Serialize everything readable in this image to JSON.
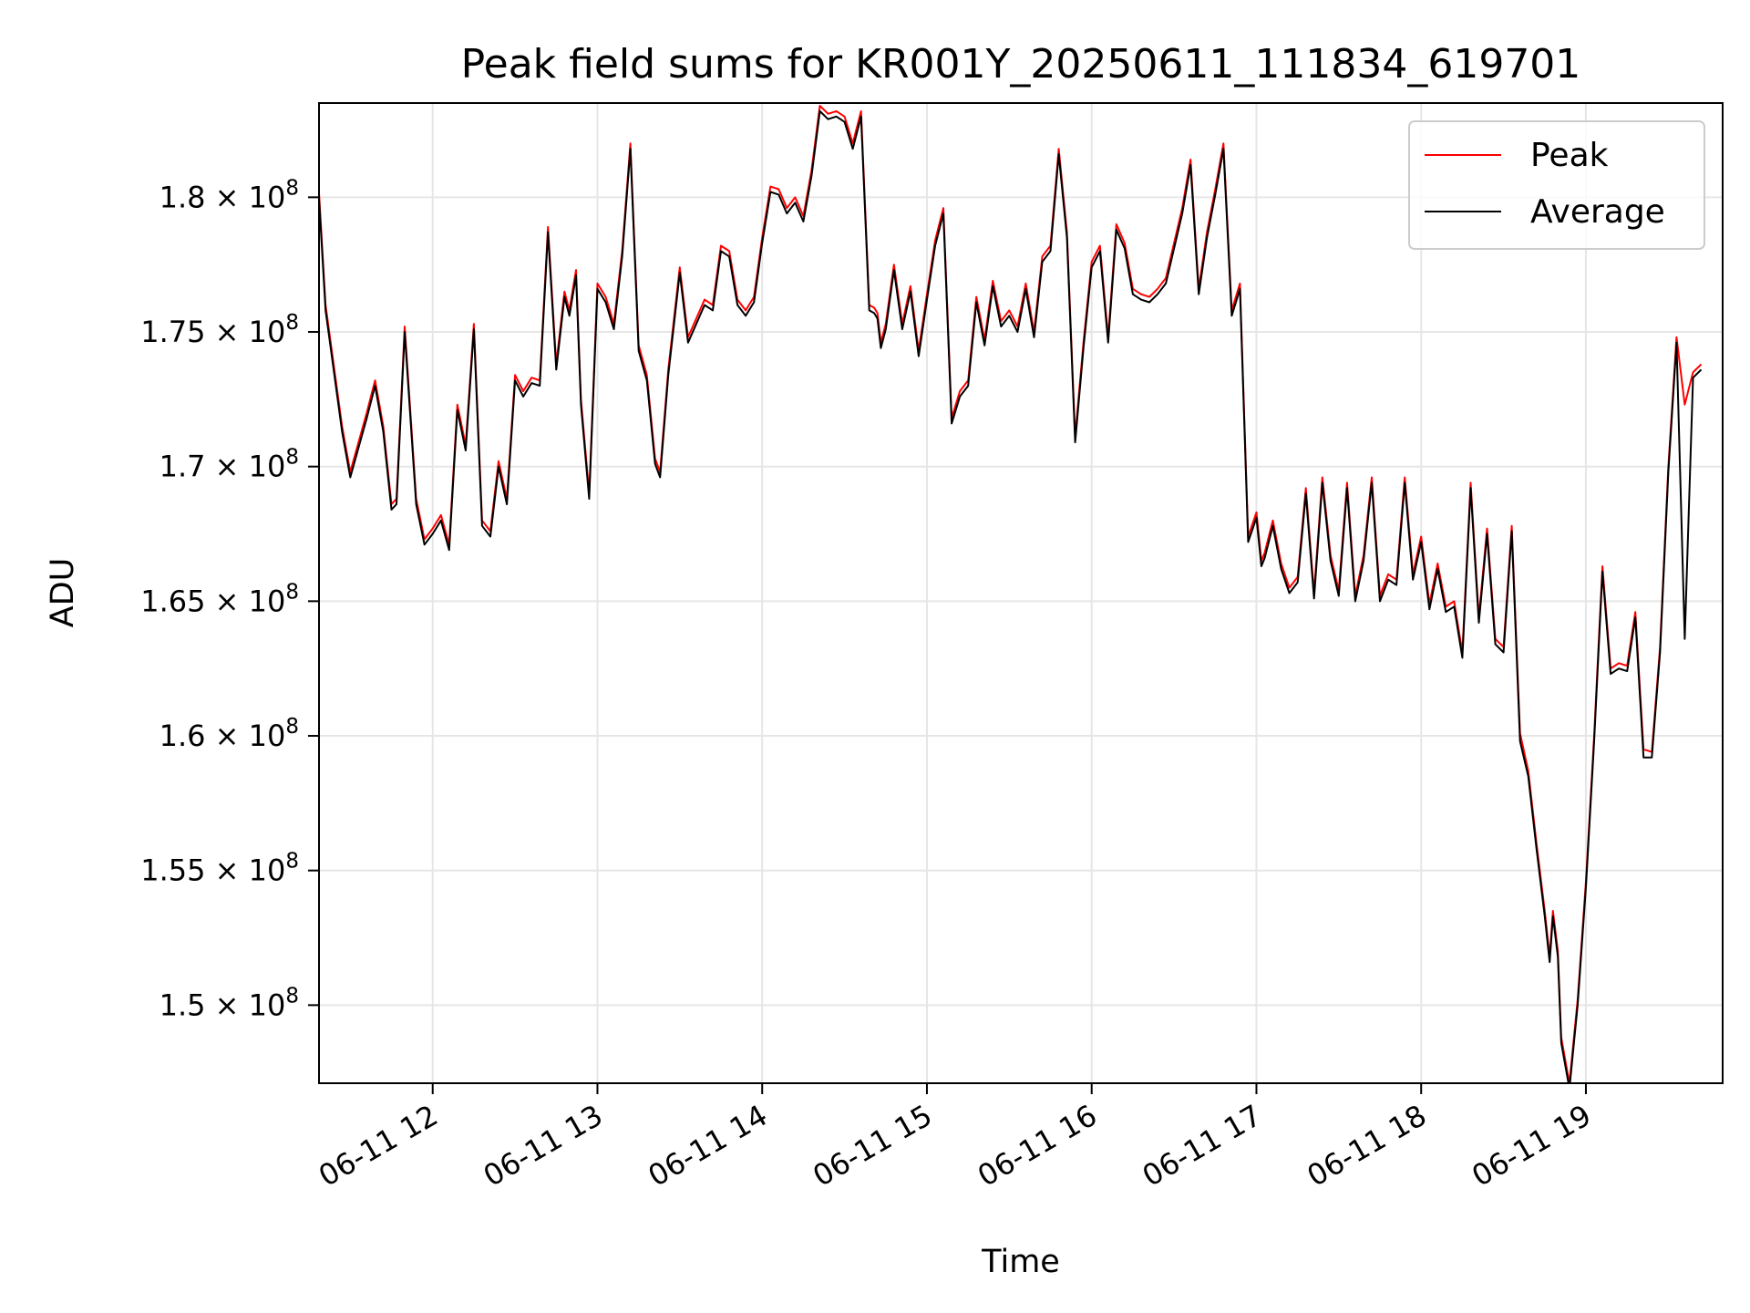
{
  "chart_data": {
    "type": "line",
    "title": "Peak field sums for KR001Y_20250611_111834_619701",
    "xlabel": "Time",
    "ylabel": "ADU",
    "x_ticks": [
      "06-11 12",
      "06-11 13",
      "06-11 14",
      "06-11 15",
      "06-11 16",
      "06-11 17",
      "06-11 18",
      "06-11 19"
    ],
    "y_ticks": [
      {
        "mantissa": "1.5",
        "exp": "8",
        "value": 150000000
      },
      {
        "mantissa": "1.55",
        "exp": "8",
        "value": 155000000
      },
      {
        "mantissa": "1.6",
        "exp": "8",
        "value": 160000000
      },
      {
        "mantissa": "1.65",
        "exp": "8",
        "value": 165000000
      },
      {
        "mantissa": "1.7",
        "exp": "8",
        "value": 170000000
      },
      {
        "mantissa": "1.75",
        "exp": "8",
        "value": 175000000
      },
      {
        "mantissa": "1.8",
        "exp": "8",
        "value": 180000000
      }
    ],
    "x_hours": [
      11.3,
      11.35,
      11.45,
      11.5,
      11.6,
      11.65,
      11.7,
      11.75,
      11.78,
      11.83,
      11.9,
      11.95,
      12.0,
      12.05,
      12.1,
      12.15,
      12.2,
      12.25,
      12.3,
      12.35,
      12.4,
      12.45,
      12.5,
      12.55,
      12.6,
      12.65,
      12.7,
      12.75,
      12.8,
      12.83,
      12.87,
      12.9,
      12.95,
      13.0,
      13.05,
      13.1,
      13.12,
      13.15,
      13.2,
      13.25,
      13.3,
      13.35,
      13.38,
      13.43,
      13.5,
      13.55,
      13.65,
      13.7,
      13.75,
      13.8,
      13.85,
      13.9,
      13.95,
      14.0,
      14.05,
      14.1,
      14.15,
      14.2,
      14.25,
      14.3,
      14.35,
      14.4,
      14.45,
      14.5,
      14.55,
      14.6,
      14.65,
      14.68,
      14.7,
      14.72,
      14.75,
      14.8,
      14.85,
      14.9,
      14.95,
      15.0,
      15.05,
      15.1,
      15.15,
      15.2,
      15.25,
      15.3,
      15.35,
      15.4,
      15.45,
      15.5,
      15.55,
      15.6,
      15.65,
      15.7,
      15.75,
      15.8,
      15.85,
      15.9,
      15.95,
      16.0,
      16.05,
      16.1,
      16.15,
      16.2,
      16.25,
      16.3,
      16.35,
      16.4,
      16.45,
      16.5,
      16.55,
      16.6,
      16.65,
      16.7,
      16.75,
      16.8,
      16.85,
      16.9,
      16.95,
      17.0,
      17.03,
      17.05,
      17.1,
      17.15,
      17.2,
      17.25,
      17.3,
      17.35,
      17.4,
      17.45,
      17.5,
      17.55,
      17.6,
      17.65,
      17.7,
      17.75,
      17.8,
      17.85,
      17.9,
      17.95,
      18.0,
      18.05,
      18.1,
      18.15,
      18.2,
      18.25,
      18.3,
      18.35,
      18.4,
      18.45,
      18.5,
      18.55,
      18.6,
      18.65,
      18.7,
      18.75,
      18.78,
      18.8,
      18.83,
      18.85,
      18.9,
      18.95,
      19.0,
      19.05,
      19.1,
      19.15,
      19.2,
      19.25,
      19.3,
      19.35,
      19.4,
      19.45,
      19.5,
      19.55,
      19.6,
      19.65,
      19.7,
      19.72,
      19.75,
      19.8,
      19.83
    ],
    "series": [
      {
        "name": "Peak",
        "color": "#ff0000",
        "values": [
          181200000,
          176000000,
          171500000,
          169800000,
          172000000,
          173200000,
          171500000,
          168600000,
          168800000,
          175200000,
          168800000,
          167300000,
          167700000,
          168200000,
          167100000,
          172300000,
          170800000,
          175300000,
          168000000,
          167600000,
          170200000,
          168800000,
          173400000,
          172800000,
          173300000,
          173200000,
          178900000,
          173800000,
          176500000,
          175800000,
          177300000,
          172500000,
          169000000,
          176800000,
          176300000,
          175300000,
          176400000,
          178000000,
          182000000,
          174500000,
          173400000,
          170300000,
          169800000,
          173600000,
          177400000,
          174800000,
          176200000,
          176000000,
          178200000,
          178000000,
          176200000,
          175800000,
          176300000,
          178500000,
          180400000,
          180300000,
          179600000,
          180000000,
          179300000,
          181000000,
          183400000,
          183100000,
          183200000,
          183000000,
          182000000,
          183200000,
          176000000,
          175900000,
          175700000,
          174600000,
          175300000,
          177500000,
          175300000,
          176700000,
          174300000,
          176400000,
          178400000,
          179600000,
          171800000,
          172800000,
          173200000,
          176300000,
          174700000,
          176900000,
          175400000,
          175800000,
          175200000,
          176800000,
          175000000,
          177800000,
          178200000,
          181800000,
          178700000,
          171100000,
          174600000,
          177600000,
          178200000,
          174800000,
          179000000,
          178300000,
          176600000,
          176400000,
          176300000,
          176600000,
          177000000,
          178300000,
          179600000,
          181400000,
          176600000,
          178700000,
          180300000,
          182000000,
          175800000,
          176800000,
          167400000,
          168300000,
          166500000,
          166800000,
          168000000,
          166400000,
          165500000,
          165900000,
          169200000,
          165300000,
          169600000,
          166700000,
          165400000,
          169400000,
          165200000,
          166700000,
          169600000,
          165200000,
          166000000,
          165800000,
          169600000,
          166000000,
          167400000,
          164900000,
          166400000,
          164800000,
          165000000,
          163100000,
          169400000,
          164400000,
          167700000,
          163600000,
          163300000,
          167800000,
          160100000,
          158700000,
          156000000,
          153500000,
          151800000,
          153500000,
          152000000,
          148800000,
          147100000,
          150200000,
          154600000,
          160000000,
          166300000,
          162500000,
          162700000,
          162600000,
          164600000,
          159500000,
          159400000,
          163300000,
          170000000,
          174800000,
          172300000,
          173500000,
          173800000
        ]
      },
      {
        "name": "Average",
        "color": "#000000",
        "values": [
          181000000,
          175800000,
          171300000,
          169600000,
          171800000,
          173000000,
          171300000,
          168400000,
          168600000,
          175000000,
          168600000,
          167100000,
          167500000,
          168000000,
          166900000,
          172100000,
          170600000,
          175100000,
          167800000,
          167400000,
          170000000,
          168600000,
          173200000,
          172600000,
          173100000,
          173000000,
          178700000,
          173600000,
          176300000,
          175600000,
          177100000,
          172300000,
          168800000,
          176600000,
          176100000,
          175100000,
          176200000,
          177800000,
          181800000,
          174300000,
          173200000,
          170100000,
          169600000,
          173400000,
          177200000,
          174600000,
          176000000,
          175800000,
          178000000,
          177800000,
          176000000,
          175600000,
          176100000,
          178300000,
          180200000,
          180100000,
          179400000,
          179800000,
          179100000,
          180800000,
          183200000,
          182900000,
          183000000,
          182800000,
          181800000,
          183000000,
          175800000,
          175700000,
          175500000,
          174400000,
          175100000,
          177300000,
          175100000,
          176500000,
          174100000,
          176200000,
          178200000,
          179400000,
          171600000,
          172600000,
          173000000,
          176100000,
          174500000,
          176700000,
          175200000,
          175600000,
          175000000,
          176600000,
          174800000,
          177600000,
          178000000,
          181600000,
          178500000,
          170900000,
          174400000,
          177400000,
          178000000,
          174600000,
          178800000,
          178100000,
          176400000,
          176200000,
          176100000,
          176400000,
          176800000,
          178100000,
          179400000,
          181200000,
          176400000,
          178500000,
          180100000,
          181800000,
          175600000,
          176600000,
          167200000,
          168100000,
          166300000,
          166600000,
          167800000,
          166200000,
          165300000,
          165700000,
          169000000,
          165100000,
          169400000,
          166500000,
          165200000,
          169200000,
          165000000,
          166500000,
          169400000,
          165000000,
          165800000,
          165600000,
          169400000,
          165800000,
          167200000,
          164700000,
          166200000,
          164600000,
          164800000,
          162900000,
          169200000,
          164200000,
          167500000,
          163400000,
          163100000,
          167600000,
          159800000,
          158500000,
          155800000,
          153300000,
          151600000,
          153300000,
          151800000,
          148600000,
          146900000,
          150000000,
          154400000,
          159800000,
          166100000,
          162300000,
          162500000,
          162400000,
          164400000,
          159200000,
          159200000,
          163100000,
          169800000,
          174600000,
          163600000,
          173300000,
          173600000
        ]
      }
    ],
    "xlim_hours": [
      11.31,
      19.83
    ],
    "ylim": [
      147100000,
      183500000
    ],
    "grid": true,
    "legend_position": "top-right"
  }
}
